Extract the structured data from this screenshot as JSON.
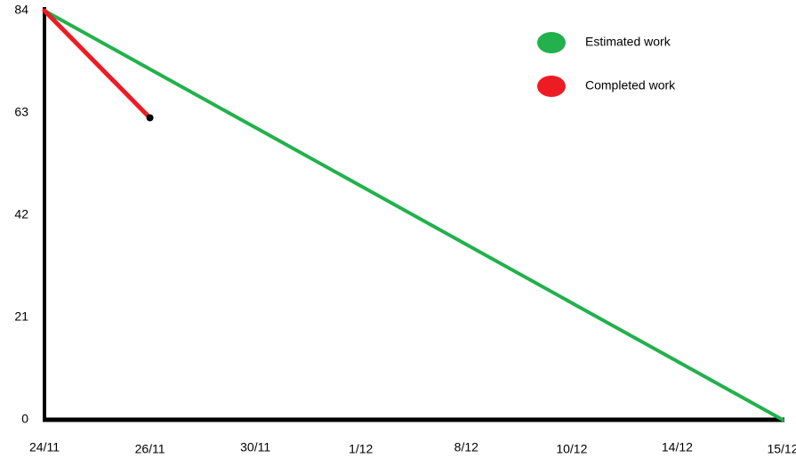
{
  "chart_data": {
    "type": "line",
    "categories": [
      "24/11",
      "26/11",
      "30/11",
      "1/12",
      "8/12",
      "10/12",
      "14/12",
      "15/12"
    ],
    "series": [
      {
        "name": "Estimated work",
        "color": "#22b14c",
        "values": [
          84,
          72,
          60,
          48,
          36,
          24,
          12,
          0
        ]
      },
      {
        "name": "Completed work",
        "color": "#ed1c24",
        "values": [
          84,
          62,
          null,
          null,
          null,
          null,
          null,
          null
        ]
      }
    ],
    "ylim": [
      0,
      84
    ],
    "yticks": [
      0,
      21,
      42,
      63,
      84
    ],
    "grid": false,
    "legend": "upper right"
  }
}
